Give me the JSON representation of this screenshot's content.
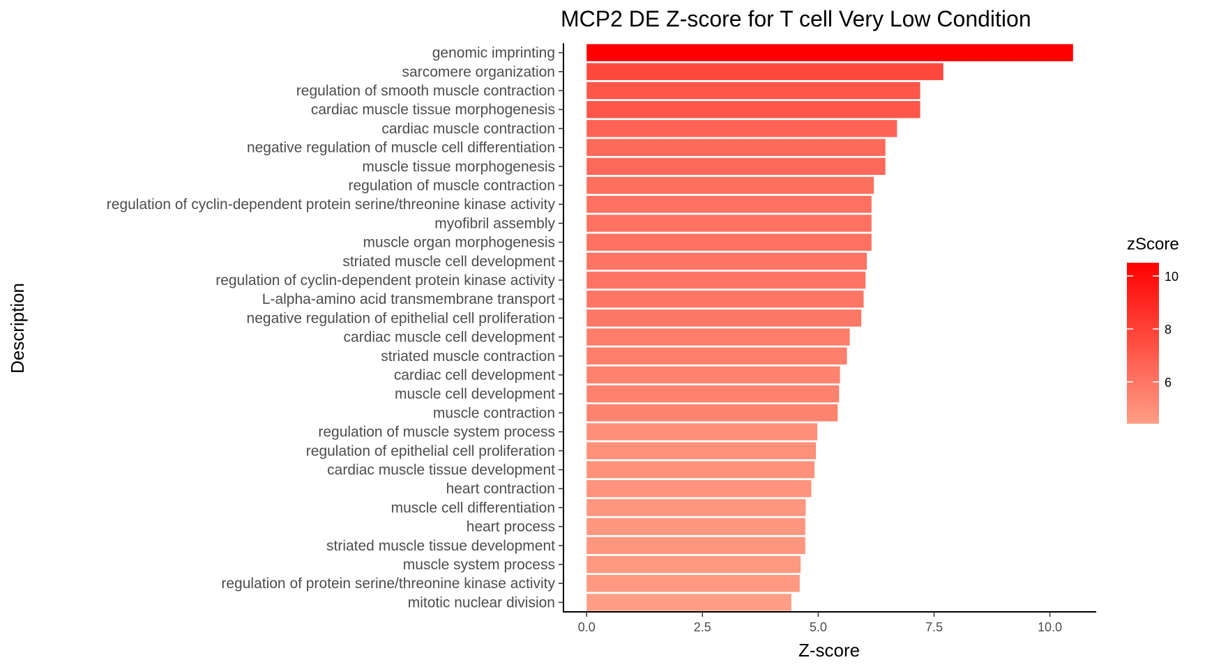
{
  "chart_data": {
    "type": "bar",
    "orientation": "horizontal",
    "title": "MCP2 DE Z-score for T cell Very Low Condition",
    "xlabel": "Z-score",
    "ylabel": "Description",
    "xlim": [
      -0.5,
      11.0
    ],
    "xticks": [
      0.0,
      2.5,
      5.0,
      7.5,
      10.0
    ],
    "xtick_labels": [
      "0.0",
      "2.5",
      "5.0",
      "7.5",
      "10.0"
    ],
    "grid": false,
    "categories": [
      "genomic imprinting",
      "sarcomere organization",
      "regulation of smooth muscle contraction",
      "cardiac muscle tissue morphogenesis",
      "cardiac muscle contraction",
      "negative regulation of muscle cell differentiation",
      "muscle tissue morphogenesis",
      "regulation of muscle contraction",
      "regulation of cyclin-dependent protein serine/threonine kinase activity",
      "myofibril assembly",
      "muscle organ morphogenesis",
      "striated muscle cell development",
      "regulation of cyclin-dependent protein kinase activity",
      "L-alpha-amino acid transmembrane transport",
      "negative regulation of epithelial cell proliferation",
      "cardiac muscle cell development",
      "striated muscle contraction",
      "cardiac cell development",
      "muscle cell development",
      "muscle contraction",
      "regulation of muscle system process",
      "regulation of epithelial cell proliferation",
      "cardiac muscle tissue development",
      "heart contraction",
      "muscle cell differentiation",
      "heart process",
      "striated muscle tissue development",
      "muscle system process",
      "regulation of protein serine/threonine kinase activity",
      "mitotic nuclear division"
    ],
    "values": [
      10.5,
      7.7,
      7.2,
      7.2,
      6.7,
      6.45,
      6.45,
      6.2,
      6.15,
      6.15,
      6.15,
      6.05,
      6.02,
      5.98,
      5.93,
      5.68,
      5.62,
      5.47,
      5.45,
      5.42,
      4.98,
      4.95,
      4.92,
      4.85,
      4.73,
      4.72,
      4.72,
      4.62,
      4.6,
      4.42
    ],
    "legend": {
      "title": "zScore",
      "placement": "right",
      "type": "colorbar",
      "min": 4.42,
      "max": 10.5,
      "ticks": [
        6,
        8,
        10
      ],
      "tick_labels": [
        "6",
        "8",
        "10"
      ],
      "color_low": "#ff9e86",
      "color_high": "#ff0000"
    }
  }
}
